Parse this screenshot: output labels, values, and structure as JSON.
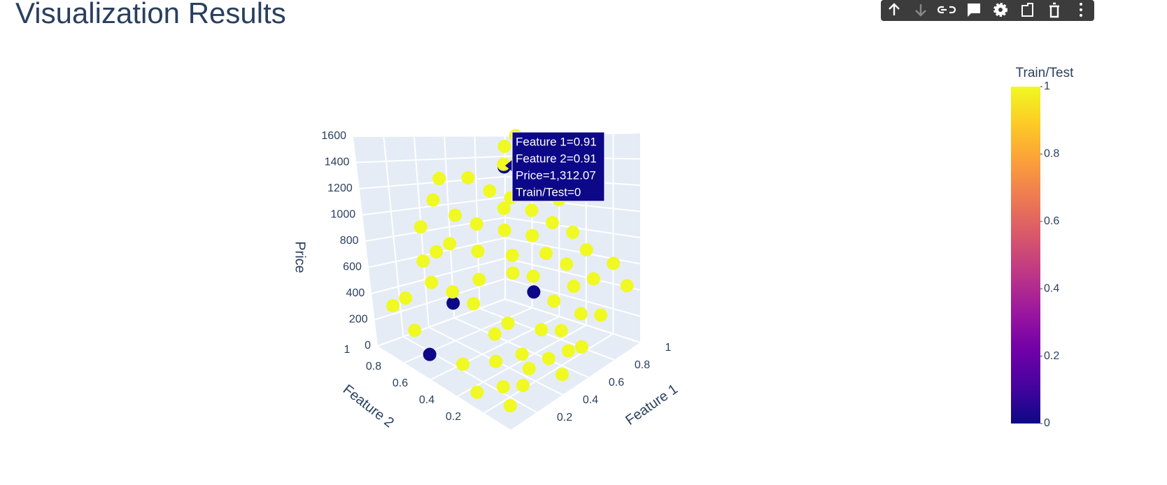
{
  "header": {
    "title": "Visualization Results"
  },
  "chart_data": {
    "type": "scatter3d",
    "x_title": "Feature 1",
    "y_title": "Feature 2",
    "z_title": "Price",
    "xlim": [
      0,
      1
    ],
    "xticks": [
      0.2,
      0.4,
      0.6,
      0.8,
      1
    ],
    "ylim": [
      0,
      1
    ],
    "yticks": [
      0.2,
      0.4,
      0.6,
      0.8,
      1
    ],
    "zlim": [
      0,
      1600
    ],
    "zticks": [
      0,
      200,
      400,
      600,
      800,
      1000,
      1200,
      1400,
      1600
    ],
    "colorbar_title": "Train/Test",
    "clim": [
      0,
      1
    ],
    "cticks": [
      0,
      0.2,
      0.4,
      0.6,
      0.8,
      1
    ],
    "colorscale": [
      "#0d0887",
      "#46039f",
      "#7201a8",
      "#9c179e",
      "#bd3786",
      "#d8576b",
      "#ed7953",
      "#fb9f3a",
      "#fdca26",
      "#f0f921"
    ],
    "grid": true,
    "x": [
      0.91,
      0.15,
      0.55,
      0.1,
      0.05,
      0.1,
      0.05,
      0.2,
      0.25,
      0.3,
      0.15,
      0.2,
      0.35,
      0.3,
      0.2,
      0.1,
      0.15,
      0.25,
      0.05,
      0.4,
      0.35,
      0.5,
      0.45,
      0.55,
      0.6,
      0.65,
      0.7,
      0.75,
      0.8,
      0.85,
      0.9,
      0.95,
      0.9,
      0.85,
      0.95,
      0.8,
      0.75,
      0.7,
      0.65,
      0.85,
      0.95,
      0.9,
      1.0,
      0.6,
      0.5,
      0.45,
      0.55,
      0.4,
      0.6,
      0.5,
      0.3,
      0.7,
      0.65,
      0.4,
      0.5,
      0.75,
      0.95,
      0.8,
      0.35,
      0.25,
      0.1,
      0.6,
      0.45,
      0.98
    ],
    "y": [
      0.91,
      0.55,
      0.35,
      0.7,
      0.9,
      0.85,
      0.75,
      0.8,
      0.75,
      0.9,
      0.7,
      0.6,
      0.55,
      0.4,
      0.3,
      0.45,
      0.2,
      0.15,
      0.3,
      0.3,
      0.2,
      0.25,
      0.15,
      0.1,
      0.2,
      0.3,
      0.15,
      0.25,
      0.1,
      0.2,
      0.3,
      0.15,
      0.4,
      0.5,
      0.55,
      0.6,
      0.7,
      0.8,
      0.9,
      0.85,
      0.95,
      0.8,
      0.7,
      0.6,
      0.7,
      0.8,
      0.5,
      0.6,
      0.4,
      0.45,
      0.7,
      0.5,
      0.65,
      0.9,
      0.95,
      0.45,
      0.05,
      0.35,
      0.35,
      0.5,
      0.1,
      0.05,
      0.05,
      0.9
    ],
    "z": [
      1312.07,
      520,
      520,
      80,
      350,
      420,
      250,
      700,
      780,
      900,
      600,
      560,
      620,
      300,
      200,
      150,
      100,
      80,
      60,
      150,
      120,
      300,
      160,
      180,
      260,
      420,
      350,
      500,
      300,
      520,
      700,
      600,
      820,
      900,
      1050,
      1000,
      1100,
      1150,
      1250,
      1350,
      1500,
      1400,
      1200,
      900,
      950,
      1000,
      750,
      800,
      600,
      650,
      850,
      850,
      1050,
      1100,
      1250,
      700,
      450,
      620,
      380,
      500,
      50,
      200,
      90,
      1600
    ],
    "color_values": [
      0,
      0,
      0,
      0,
      1,
      1,
      1,
      1,
      1,
      1,
      1,
      1,
      1,
      1,
      1,
      1,
      1,
      1,
      1,
      1,
      1,
      1,
      1,
      1,
      1,
      1,
      1,
      1,
      1,
      1,
      1,
      1,
      1,
      1,
      1,
      1,
      1,
      1,
      1,
      1,
      1,
      1,
      1,
      1,
      1,
      1,
      1,
      1,
      1,
      1,
      1,
      1,
      1,
      1,
      1,
      1,
      1,
      1,
      1,
      1,
      1,
      1,
      1,
      1
    ],
    "hover": [
      "Feature 1=0.91",
      "Feature 2=0.91",
      "Price=1,312.07",
      "Train/Test=0"
    ]
  }
}
